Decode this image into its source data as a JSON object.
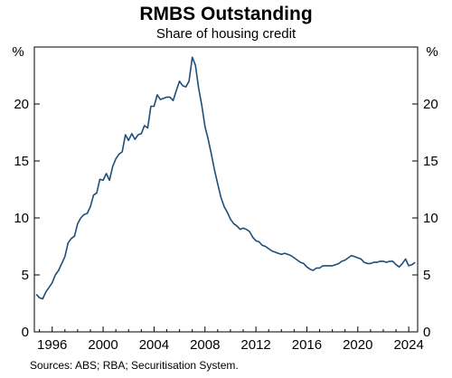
{
  "chart_data": {
    "type": "line",
    "title": "RMBS Outstanding",
    "subtitle": "Share of housing credit",
    "ylabel_left": "%",
    "ylabel_right": "%",
    "source": "Sources:  ABS; RBA; Securitisation System.",
    "ylim": [
      0,
      25
    ],
    "yticks": [
      0,
      5,
      10,
      15,
      20
    ],
    "xlim": [
      1994.6,
      2024.7
    ],
    "xticks": [
      1996,
      2000,
      2004,
      2008,
      2012,
      2016,
      2020,
      2024
    ],
    "line_color": "#1f4e79",
    "grid": false,
    "series": [
      {
        "x": [
          1994.75,
          1995.0,
          1995.25,
          1995.5,
          1995.75,
          1996.0,
          1996.25,
          1996.5,
          1996.75,
          1997.0,
          1997.25,
          1997.5,
          1997.75,
          1998.0,
          1998.25,
          1998.5,
          1998.75,
          1999.0,
          1999.25,
          1999.5,
          1999.75,
          2000.0,
          2000.25,
          2000.5,
          2000.75,
          2001.0,
          2001.25,
          2001.5,
          2001.75,
          2002.0,
          2002.25,
          2002.5,
          2002.75,
          2003.0,
          2003.25,
          2003.5,
          2003.75,
          2004.0,
          2004.25,
          2004.5,
          2004.75,
          2005.0,
          2005.25,
          2005.5,
          2005.75,
          2006.0,
          2006.25,
          2006.5,
          2006.75,
          2007.0,
          2007.25,
          2007.5,
          2007.75,
          2008.0,
          2008.25,
          2008.5,
          2008.75,
          2009.0,
          2009.25,
          2009.5,
          2009.75,
          2010.0,
          2010.25,
          2010.5,
          2010.75,
          2011.0,
          2011.25,
          2011.5,
          2011.75,
          2012.0,
          2012.25,
          2012.5,
          2012.75,
          2013.0,
          2013.25,
          2013.5,
          2013.75,
          2014.0,
          2014.25,
          2014.5,
          2014.75,
          2015.0,
          2015.25,
          2015.5,
          2015.75,
          2016.0,
          2016.25,
          2016.5,
          2016.75,
          2017.0,
          2017.25,
          2017.5,
          2017.75,
          2018.0,
          2018.25,
          2018.5,
          2018.75,
          2019.0,
          2019.25,
          2019.5,
          2019.75,
          2020.0,
          2020.25,
          2020.5,
          2020.75,
          2021.0,
          2021.25,
          2021.5,
          2021.75,
          2022.0,
          2022.25,
          2022.5,
          2022.75,
          2023.0,
          2023.25,
          2023.5,
          2023.75,
          2024.0,
          2024.25,
          2024.5
        ],
        "values": [
          3.3,
          3.0,
          2.9,
          3.5,
          3.9,
          4.3,
          5.0,
          5.4,
          6.0,
          6.6,
          7.8,
          8.2,
          8.4,
          9.5,
          10.0,
          10.3,
          10.4,
          11.0,
          12.0,
          12.2,
          13.4,
          13.3,
          13.9,
          13.3,
          14.5,
          15.2,
          15.6,
          15.8,
          17.3,
          16.8,
          17.4,
          16.9,
          17.3,
          17.4,
          18.1,
          17.9,
          19.8,
          19.8,
          20.8,
          20.4,
          20.5,
          20.6,
          20.6,
          20.3,
          21.2,
          22.0,
          21.6,
          21.5,
          22.0,
          24.1,
          23.4,
          21.4,
          19.9,
          18.0,
          16.9,
          15.6,
          14.2,
          13.0,
          11.8,
          11.0,
          10.5,
          9.9,
          9.5,
          9.3,
          9.0,
          9.1,
          9.0,
          8.8,
          8.3,
          8.0,
          7.9,
          7.6,
          7.5,
          7.3,
          7.1,
          7.0,
          6.9,
          6.8,
          6.9,
          6.8,
          6.7,
          6.5,
          6.3,
          6.1,
          6.0,
          5.7,
          5.5,
          5.4,
          5.6,
          5.6,
          5.8,
          5.8,
          5.8,
          5.8,
          5.9,
          6.0,
          6.2,
          6.3,
          6.5,
          6.7,
          6.6,
          6.5,
          6.4,
          6.1,
          6.0,
          6.0,
          6.1,
          6.1,
          6.2,
          6.2,
          6.1,
          6.2,
          6.2,
          5.9,
          5.7,
          6.0,
          6.4,
          5.8,
          5.9,
          6.1
        ]
      }
    ]
  }
}
